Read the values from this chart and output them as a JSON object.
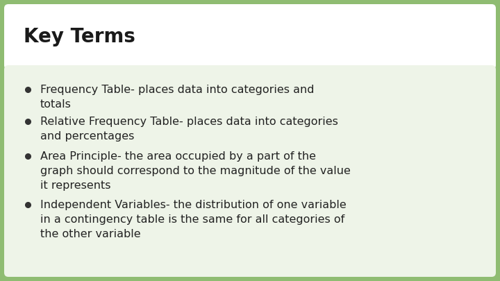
{
  "title": "Key Terms",
  "background_color": "#8fbc72",
  "title_box_color": "#ffffff",
  "content_box_color": "#eef4e8",
  "title_text_color": "#1a1a1a",
  "bullet_text_color": "#222222",
  "bullet_color": "#333333",
  "title_fontsize": 20,
  "bullet_fontsize": 11.5,
  "bullets": [
    "Frequency Table- places data into categories and\ntotals",
    "Relative Frequency Table- places data into categories\nand percentages",
    "Area Principle- the area occupied by a part of the\ngraph should correspond to the magnitude of the value\nit represents",
    "Independent Variables- the distribution of one variable\nin a contingency table is the same for all categories of\nthe other variable"
  ]
}
